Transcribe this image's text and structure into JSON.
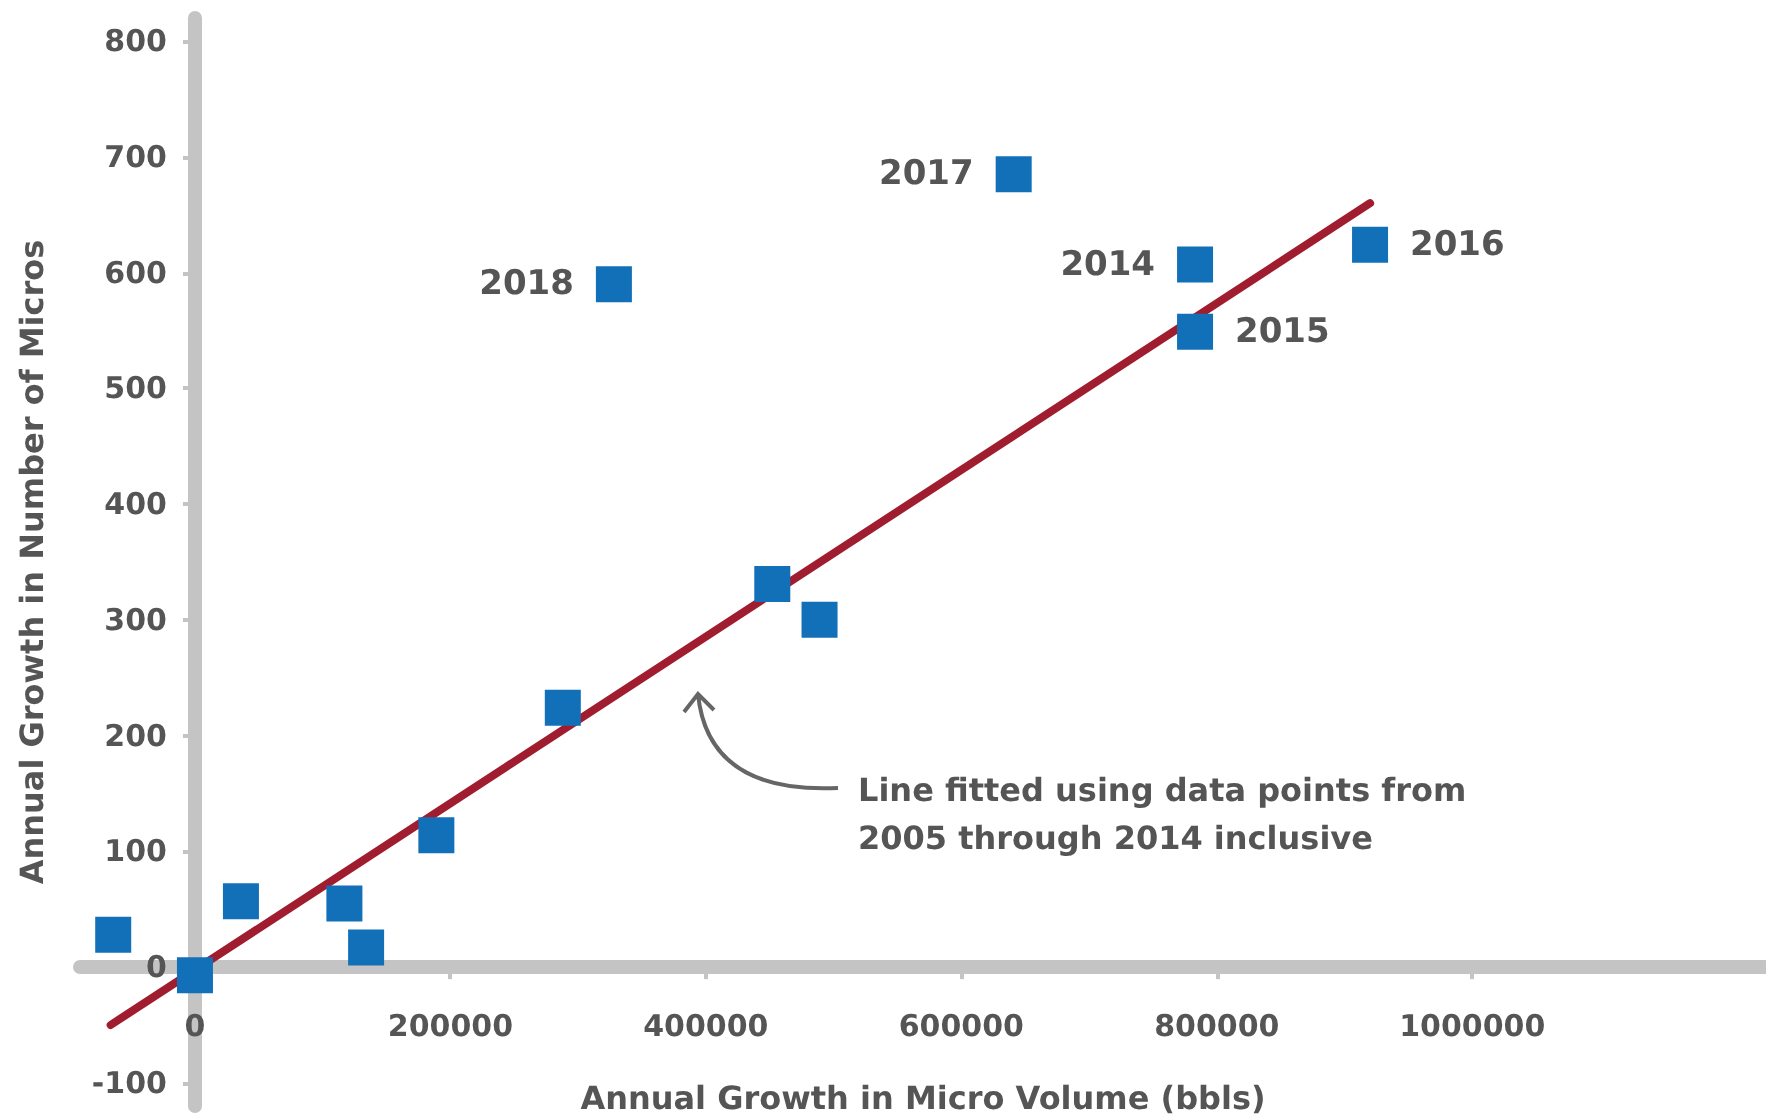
{
  "chart_data": {
    "type": "scatter",
    "xlabel": "Annual Growth in Micro Volume (bbls)",
    "ylabel": "Annual Growth in Number of Micros",
    "xlim": [
      -90000,
      1230000
    ],
    "xticks": [
      0,
      200000,
      400000,
      600000,
      800000,
      1000000
    ],
    "ylim": [
      -120,
      820
    ],
    "yticks": [
      -100,
      0,
      100,
      200,
      300,
      400,
      500,
      600,
      700,
      800
    ],
    "marker": "square",
    "series": [
      {
        "color": "#1170b8",
        "x": [
          -64000,
          0,
          36000,
          117000,
          134000,
          189000,
          288000,
          328000,
          452000,
          489000,
          641000,
          783000,
          783000,
          920000
        ],
        "values": [
          28,
          -7,
          57,
          55,
          17,
          114,
          224,
          590,
          331,
          300,
          685,
          607,
          549,
          624
        ]
      },
      {
        "type": "line",
        "color": "#a01c2f",
        "x": [
          -66000,
          920000
        ],
        "values": [
          -50,
          660
        ],
        "marker": "none"
      }
    ],
    "annotations": [
      {
        "text": "2018",
        "x": 328000,
        "y": 590
      },
      {
        "text": "2017",
        "x": 641000,
        "y": 685
      },
      {
        "text": "2014",
        "x": 783000,
        "y": 607
      },
      {
        "text": "2015",
        "x": 783000,
        "y": 549
      },
      {
        "text": "2016",
        "x": 920000,
        "y": 624
      },
      "Line fitted using data points from 2005 through 2014 inclusive"
    ]
  }
}
